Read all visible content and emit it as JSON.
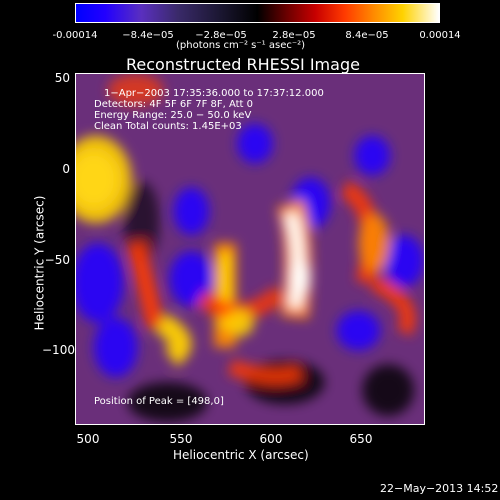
{
  "colorbar": {
    "tick_labels": [
      "-0.00014",
      "−8.4e−05",
      "−2.8e−05",
      "2.8e−05",
      "8.4e−05",
      "0.00014"
    ],
    "units_label": "(photons cm⁻² s⁻¹ asec⁻²)"
  },
  "title": "Reconstructed RHESSI Image",
  "info": {
    "line1": "1−Apr−2003 17:35:36.000 to 17:37:12.000",
    "line2": "Detectors: 4F 5F 6F 7F 8F, Att 0",
    "line3": "Energy Range: 25.0 − 50.0 keV",
    "line4": "Clean     Total counts: 1.45E+03"
  },
  "peak_label": "Position of Peak = [498,0]",
  "x_axis": {
    "label": "Heliocentric X (arcsec)",
    "ticks": [
      "500",
      "550",
      "600",
      "650"
    ]
  },
  "y_axis": {
    "label": "Heliocentric Y (arcsec)",
    "ticks": [
      "50",
      "0",
      "−50",
      "−100"
    ]
  },
  "footer_date": "22−May−2013 14:52",
  "colors": {
    "background": "#000000",
    "text": "#ffffff"
  }
}
